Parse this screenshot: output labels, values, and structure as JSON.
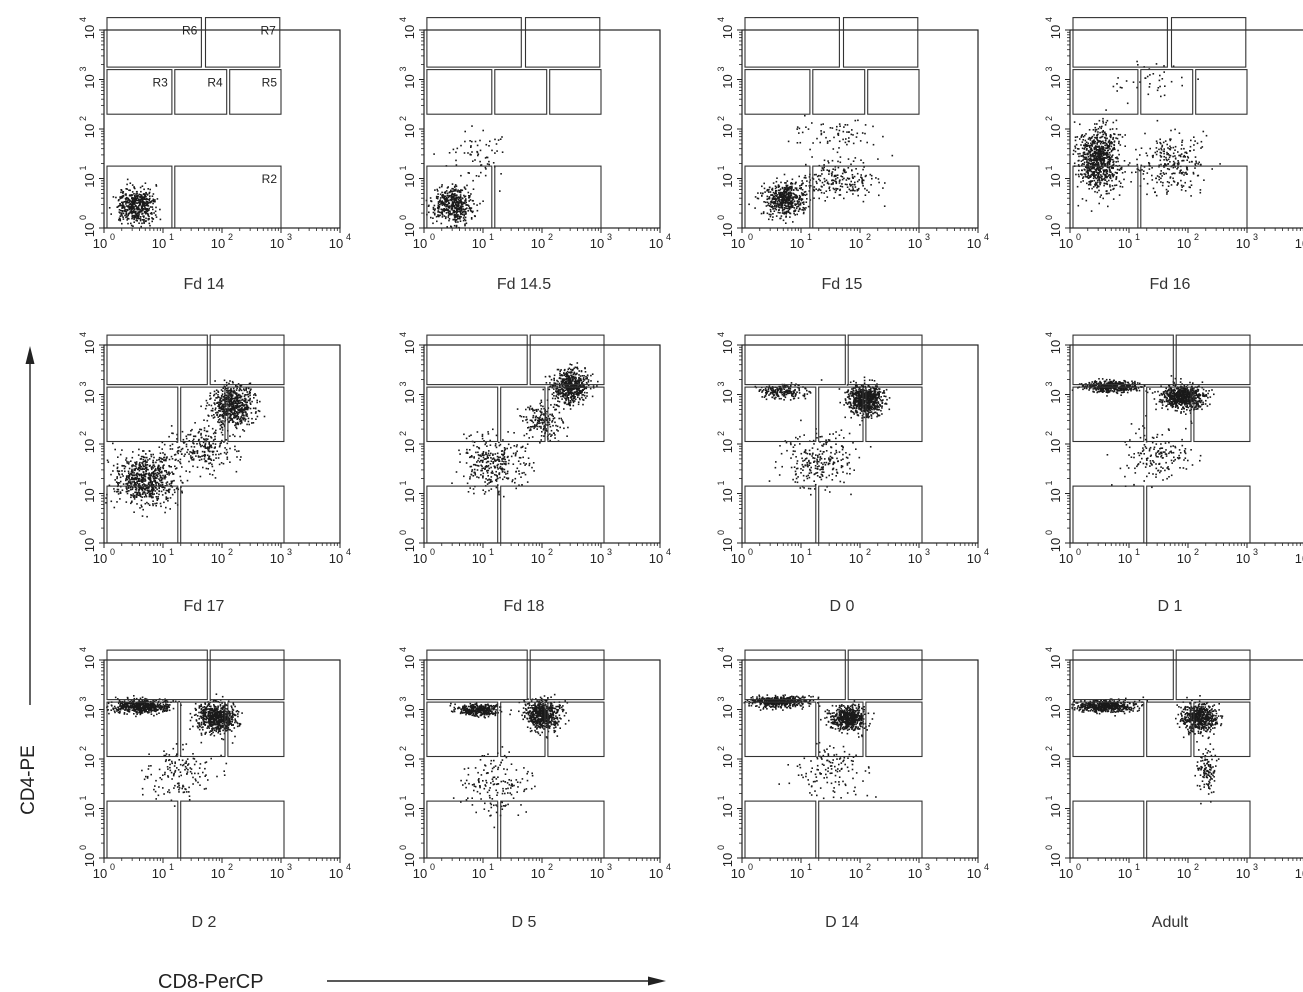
{
  "chart_data": {
    "type": "scatter",
    "xlabel": "CD8-PerCP",
    "ylabel": "CD4-PE",
    "xscale": "log",
    "yscale": "log",
    "xlim": [
      1,
      10000
    ],
    "ylim": [
      1,
      10000
    ],
    "tick_labels": [
      "10",
      "10",
      "10",
      "10",
      "10"
    ],
    "tick_exponents": [
      "0",
      "1",
      "2",
      "3",
      "4"
    ],
    "region_labels": [
      "R2",
      "R3",
      "R4",
      "R5",
      "R6",
      "R7"
    ],
    "panels": [
      {
        "label": "Fd 14",
        "clusters": [
          {
            "x": 3.5,
            "y": 3,
            "sx": 0.28,
            "sy": 0.3,
            "n": 520
          }
        ]
      },
      {
        "label": "Fd 14.5",
        "clusters": [
          {
            "x": 3,
            "y": 3,
            "sx": 0.28,
            "sy": 0.3,
            "n": 480
          },
          {
            "x": 8,
            "y": 30,
            "sx": 0.4,
            "sy": 0.45,
            "n": 70
          }
        ]
      },
      {
        "label": "Fd 15",
        "clusters": [
          {
            "x": 5,
            "y": 4,
            "sx": 0.3,
            "sy": 0.3,
            "n": 500
          },
          {
            "x": 40,
            "y": 10,
            "sx": 0.55,
            "sy": 0.35,
            "n": 220
          },
          {
            "x": 40,
            "y": 80,
            "sx": 0.6,
            "sy": 0.25,
            "n": 70
          }
        ]
      },
      {
        "label": "Fd 16",
        "clusters": [
          {
            "x": 3,
            "y": 25,
            "sx": 0.3,
            "sy": 0.55,
            "n": 800
          },
          {
            "x": 50,
            "y": 20,
            "sx": 0.5,
            "sy": 0.5,
            "n": 260
          },
          {
            "x": 20,
            "y": 1000,
            "sx": 0.6,
            "sy": 0.3,
            "n": 40
          }
        ]
      },
      {
        "label": "Fd 17",
        "clusters": [
          {
            "x": 5,
            "y": 20,
            "sx": 0.45,
            "sy": 0.45,
            "n": 700
          },
          {
            "x": 150,
            "y": 600,
            "sx": 0.3,
            "sy": 0.35,
            "n": 600
          },
          {
            "x": 40,
            "y": 80,
            "sx": 0.5,
            "sy": 0.4,
            "n": 250
          }
        ]
      },
      {
        "label": "Fd 18",
        "clusters": [
          {
            "x": 300,
            "y": 1500,
            "sx": 0.25,
            "sy": 0.3,
            "n": 550
          },
          {
            "x": 15,
            "y": 40,
            "sx": 0.45,
            "sy": 0.45,
            "n": 320
          },
          {
            "x": 100,
            "y": 300,
            "sx": 0.3,
            "sy": 0.3,
            "n": 180
          }
        ]
      },
      {
        "label": "D 0",
        "clusters": [
          {
            "x": 120,
            "y": 800,
            "sx": 0.25,
            "sy": 0.25,
            "n": 700
          },
          {
            "x": 5,
            "y": 1200,
            "sx": 0.35,
            "sy": 0.12,
            "n": 200
          },
          {
            "x": 20,
            "y": 50,
            "sx": 0.5,
            "sy": 0.5,
            "n": 250
          }
        ]
      },
      {
        "label": "D 1",
        "clusters": [
          {
            "x": 80,
            "y": 900,
            "sx": 0.3,
            "sy": 0.2,
            "n": 700
          },
          {
            "x": 5,
            "y": 1500,
            "sx": 0.4,
            "sy": 0.1,
            "n": 420
          },
          {
            "x": 30,
            "y": 60,
            "sx": 0.5,
            "sy": 0.5,
            "n": 170
          }
        ]
      },
      {
        "label": "D 2",
        "clusters": [
          {
            "x": 80,
            "y": 700,
            "sx": 0.3,
            "sy": 0.25,
            "n": 650
          },
          {
            "x": 4,
            "y": 1200,
            "sx": 0.4,
            "sy": 0.12,
            "n": 550
          },
          {
            "x": 20,
            "y": 50,
            "sx": 0.5,
            "sy": 0.5,
            "n": 150
          }
        ]
      },
      {
        "label": "D 5",
        "clusters": [
          {
            "x": 100,
            "y": 800,
            "sx": 0.25,
            "sy": 0.25,
            "n": 600
          },
          {
            "x": 8,
            "y": 1000,
            "sx": 0.3,
            "sy": 0.1,
            "n": 350
          },
          {
            "x": 15,
            "y": 30,
            "sx": 0.5,
            "sy": 0.5,
            "n": 160
          }
        ]
      },
      {
        "label": "D 14",
        "clusters": [
          {
            "x": 60,
            "y": 700,
            "sx": 0.25,
            "sy": 0.2,
            "n": 550
          },
          {
            "x": 4,
            "y": 1500,
            "sx": 0.4,
            "sy": 0.1,
            "n": 450
          },
          {
            "x": 30,
            "y": 60,
            "sx": 0.5,
            "sy": 0.5,
            "n": 130
          }
        ]
      },
      {
        "label": "Adult",
        "clusters": [
          {
            "x": 150,
            "y": 700,
            "sx": 0.25,
            "sy": 0.25,
            "n": 550
          },
          {
            "x": 4,
            "y": 1200,
            "sx": 0.4,
            "sy": 0.1,
            "n": 480
          },
          {
            "x": 200,
            "y": 60,
            "sx": 0.15,
            "sy": 0.35,
            "n": 120
          }
        ]
      }
    ]
  }
}
